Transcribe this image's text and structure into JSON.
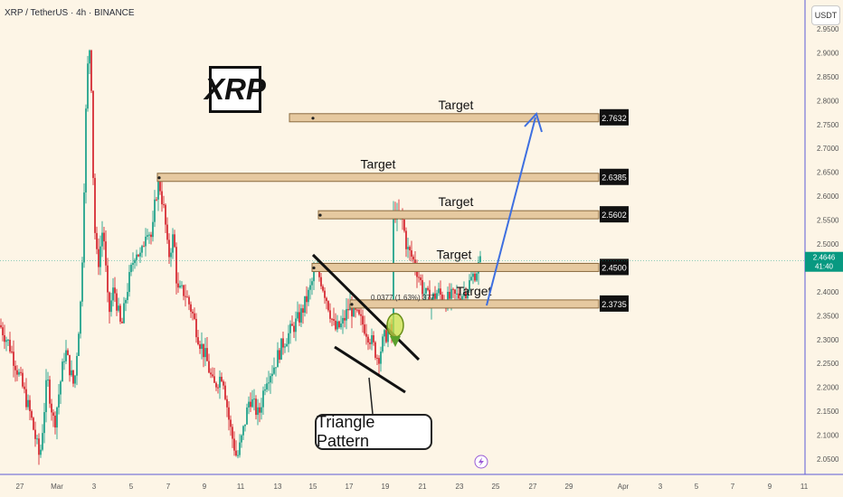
{
  "header": {
    "symbol_line": "XRP / TetherUS · 4h · BINANCE"
  },
  "currency_button": "USDT",
  "logo_text": "XRP",
  "pattern_label": "Triangle Pattern",
  "measure_label": "0.0377 (1.63%) 377",
  "colors": {
    "background": "#fdf5e6",
    "up_candle": "#089981",
    "down_candle": "#d1141f",
    "zone_fill": "#e6c9a0",
    "zone_border": "#8a6a3f",
    "arrow": "#3e6fe0",
    "axis_border": "#5b5bd6",
    "label_bg": "#111111",
    "price_tag": "#089981",
    "highlight": "#c8e04a"
  },
  "chart_data": {
    "type": "candlestick",
    "symbol": "XRP / TetherUS",
    "timeframe": "4h",
    "exchange": "BINANCE",
    "current_price": "2.4646",
    "countdown": "41:40",
    "y_axis": {
      "min": 2.02,
      "max": 2.97,
      "ticks": [
        "2.0500",
        "2.1000",
        "2.1500",
        "2.2000",
        "2.2500",
        "2.3000",
        "2.3500",
        "2.4000",
        "2.4500",
        "2.5000",
        "2.5500",
        "2.6000",
        "2.6500",
        "2.7000",
        "2.7500",
        "2.8000",
        "2.8500",
        "2.9000",
        "2.9500"
      ]
    },
    "x_axis": {
      "ticks": [
        "27",
        "Mar",
        "3",
        "5",
        "7",
        "9",
        "11",
        "13",
        "15",
        "17",
        "19",
        "21",
        "23",
        "25",
        "27",
        "29",
        "Apr",
        "3",
        "5",
        "7",
        "9",
        "11"
      ]
    },
    "targets": [
      {
        "label": "Target",
        "price": "2.7632",
        "value": 2.7632
      },
      {
        "label": "Target",
        "price": "2.6385",
        "value": 2.6385
      },
      {
        "label": "Target",
        "price": "2.5602",
        "value": 2.5602
      },
      {
        "label": "Target",
        "price": "2.4500",
        "value": 2.45
      },
      {
        "label": "Target",
        "price": "2.3735",
        "value": 2.3735
      }
    ],
    "annotations": [
      "Triangle Pattern",
      "XRP",
      "0.0377 (1.63%) 377"
    ],
    "key_points": [
      {
        "date": "26 Feb",
        "close": 2.3
      },
      {
        "date": "3 Mar",
        "high": 2.97
      },
      {
        "date": "4 Mar",
        "close": 2.45
      },
      {
        "date": "6 Mar",
        "high": 2.64
      },
      {
        "date": "11 Mar",
        "low": 2.03
      },
      {
        "date": "15 Mar",
        "close": 2.44
      },
      {
        "date": "18 Mar",
        "low": 2.25
      },
      {
        "date": "19 Mar",
        "high": 2.59
      },
      {
        "date": "22 Mar",
        "close": 2.38
      },
      {
        "date": "24 Mar",
        "close": 2.4646
      }
    ]
  }
}
